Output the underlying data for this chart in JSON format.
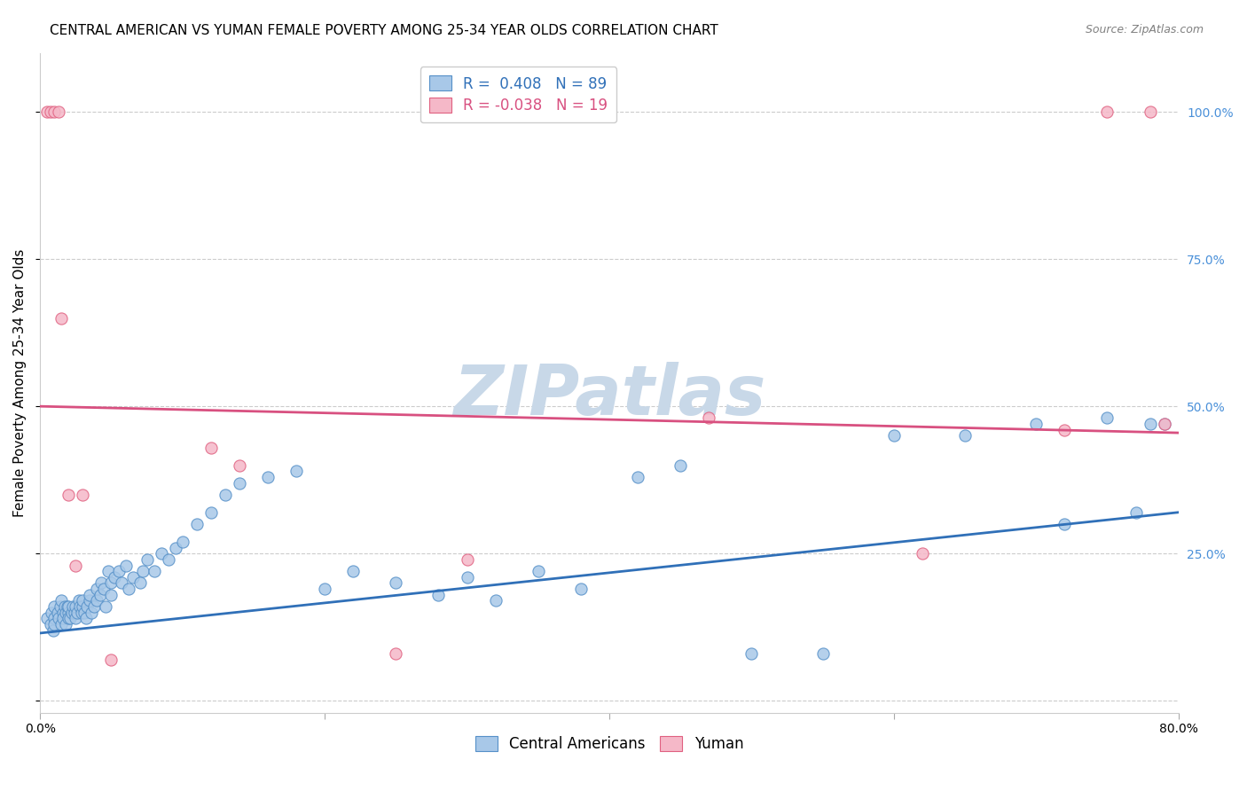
{
  "title": "CENTRAL AMERICAN VS YUMAN FEMALE POVERTY AMONG 25-34 YEAR OLDS CORRELATION CHART",
  "source": "Source: ZipAtlas.com",
  "ylabel": "Female Poverty Among 25-34 Year Olds",
  "xlim": [
    0.0,
    0.8
  ],
  "ylim": [
    -0.02,
    1.1
  ],
  "blue_R": 0.408,
  "blue_N": 89,
  "pink_R": -0.038,
  "pink_N": 19,
  "blue_color": "#A8C8E8",
  "pink_color": "#F5B8C8",
  "blue_edge_color": "#5590C8",
  "pink_edge_color": "#E06080",
  "blue_line_color": "#3070B8",
  "pink_line_color": "#D85080",
  "watermark": "ZIPatlas",
  "watermark_color": "#C8D8E8",
  "grid_color": "#CCCCCC",
  "title_fontsize": 11,
  "axis_label_fontsize": 11,
  "tick_fontsize": 10,
  "legend_fontsize": 12,
  "right_tick_color": "#4A90D9",
  "blue_trend_x": [
    0.0,
    0.8
  ],
  "blue_trend_y": [
    0.115,
    0.32
  ],
  "pink_trend_x": [
    0.0,
    0.8
  ],
  "pink_trend_y": [
    0.5,
    0.455
  ],
  "blue_scatter_x": [
    0.005,
    0.007,
    0.008,
    0.009,
    0.01,
    0.01,
    0.01,
    0.012,
    0.013,
    0.014,
    0.015,
    0.015,
    0.016,
    0.016,
    0.017,
    0.018,
    0.018,
    0.019,
    0.02,
    0.02,
    0.02,
    0.021,
    0.022,
    0.023,
    0.024,
    0.025,
    0.025,
    0.026,
    0.027,
    0.028,
    0.029,
    0.03,
    0.03,
    0.031,
    0.032,
    0.033,
    0.035,
    0.035,
    0.036,
    0.038,
    0.04,
    0.04,
    0.042,
    0.043,
    0.045,
    0.046,
    0.048,
    0.05,
    0.05,
    0.052,
    0.055,
    0.057,
    0.06,
    0.062,
    0.065,
    0.07,
    0.072,
    0.075,
    0.08,
    0.085,
    0.09,
    0.095,
    0.1,
    0.11,
    0.12,
    0.13,
    0.14,
    0.16,
    0.18,
    0.2,
    0.22,
    0.25,
    0.28,
    0.3,
    0.32,
    0.35,
    0.38,
    0.42,
    0.45,
    0.5,
    0.55,
    0.6,
    0.65,
    0.7,
    0.72,
    0.75,
    0.77,
    0.78,
    0.79
  ],
  "blue_scatter_y": [
    0.14,
    0.13,
    0.15,
    0.12,
    0.16,
    0.14,
    0.13,
    0.15,
    0.14,
    0.16,
    0.13,
    0.17,
    0.15,
    0.14,
    0.16,
    0.15,
    0.13,
    0.16,
    0.15,
    0.14,
    0.16,
    0.14,
    0.15,
    0.16,
    0.15,
    0.16,
    0.14,
    0.15,
    0.17,
    0.16,
    0.15,
    0.16,
    0.17,
    0.15,
    0.14,
    0.16,
    0.17,
    0.18,
    0.15,
    0.16,
    0.17,
    0.19,
    0.18,
    0.2,
    0.19,
    0.16,
    0.22,
    0.18,
    0.2,
    0.21,
    0.22,
    0.2,
    0.23,
    0.19,
    0.21,
    0.2,
    0.22,
    0.24,
    0.22,
    0.25,
    0.24,
    0.26,
    0.27,
    0.3,
    0.32,
    0.35,
    0.37,
    0.38,
    0.39,
    0.19,
    0.22,
    0.2,
    0.18,
    0.21,
    0.17,
    0.22,
    0.19,
    0.38,
    0.4,
    0.08,
    0.08,
    0.45,
    0.45,
    0.47,
    0.3,
    0.48,
    0.32,
    0.47,
    0.47
  ],
  "pink_scatter_x": [
    0.005,
    0.007,
    0.01,
    0.013,
    0.015,
    0.02,
    0.025,
    0.03,
    0.05,
    0.12,
    0.14,
    0.25,
    0.3,
    0.47,
    0.62,
    0.72,
    0.75,
    0.78,
    0.79
  ],
  "pink_scatter_y": [
    1.0,
    1.0,
    1.0,
    1.0,
    0.65,
    0.35,
    0.23,
    0.35,
    0.07,
    0.43,
    0.4,
    0.08,
    0.24,
    0.48,
    0.25,
    0.46,
    1.0,
    1.0,
    0.47
  ]
}
